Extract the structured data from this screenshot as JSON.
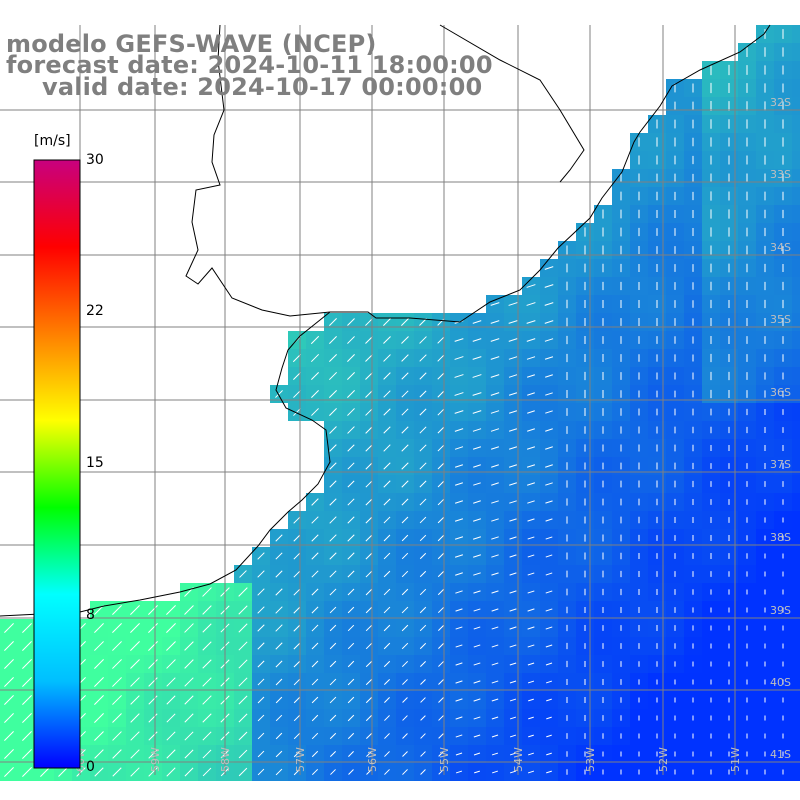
{
  "title": {
    "line1": "modelo GEFS-WAVE (NCEP)",
    "line2": "forecast date: 2024-10-11 18:00:00",
    "line3": "valid date: 2024-10-17 00:00:00"
  },
  "colorbar": {
    "units": "[m/s]",
    "ticks": [
      "30",
      "22",
      "15",
      "8",
      "0"
    ],
    "tick_values": [
      30,
      22,
      15,
      8,
      0
    ],
    "min": 0,
    "max": 30,
    "colors": [
      "#0000ff",
      "#00bfff",
      "#00ffff",
      "#00ff00",
      "#ffff00",
      "#ff7f00",
      "#ff0000",
      "#c8007f"
    ]
  },
  "map": {
    "lat_labels": [
      "32S",
      "33S",
      "34S",
      "35S",
      "36S",
      "37S",
      "38S",
      "39S",
      "40S",
      "41S"
    ],
    "lon_labels": [
      "60W",
      "59W",
      "58W",
      "57W",
      "56W",
      "55W",
      "54W",
      "53W",
      "52W",
      "51W"
    ],
    "ocean_color_low": "#0033ff",
    "ocean_color_high": "#3fff9f",
    "coast_color": "#000000",
    "grid_color": "#808080",
    "arrow_color": "#ffffff"
  }
}
